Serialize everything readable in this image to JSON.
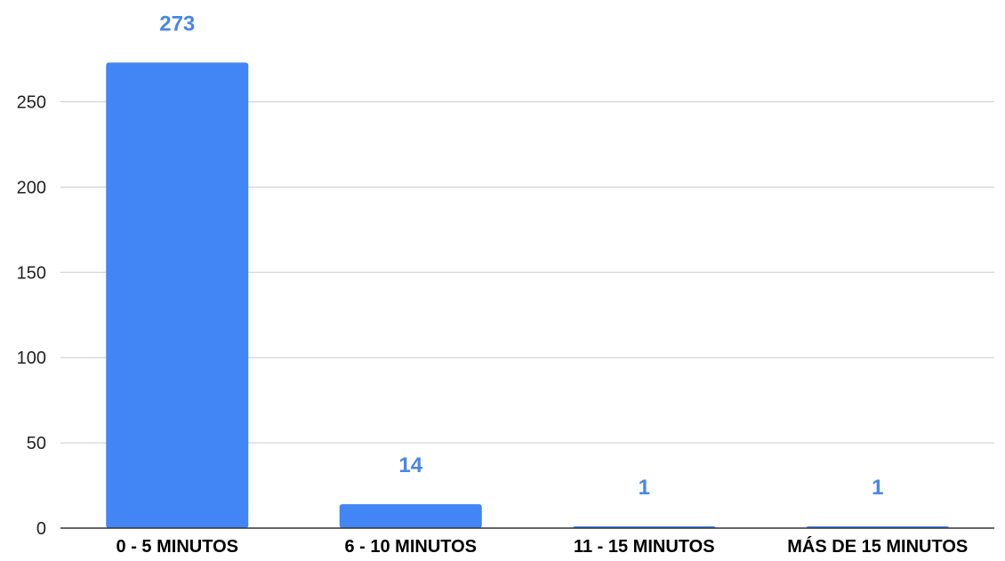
{
  "chart_data": {
    "type": "bar",
    "title": "",
    "xlabel": "",
    "ylabel": "",
    "categories": [
      "0 - 5 MINUTOS",
      "6 - 10 MINUTOS",
      "11 - 15 MINUTOS",
      "MÁS DE 15 MINUTOS"
    ],
    "values": [
      273,
      14,
      1,
      1
    ],
    "data_labels": [
      "273",
      "14",
      "1",
      "1"
    ],
    "y_ticks": [
      0,
      50,
      100,
      150,
      200,
      250
    ],
    "ylim": [
      0,
      280
    ],
    "grid": true,
    "legend": "none",
    "colors": {
      "bar": "#4285f4",
      "data_label": "#4a86e8",
      "gridline": "#cccccc",
      "axis": "#333333",
      "tick_label": "#222222",
      "category_label": "#000000"
    }
  }
}
